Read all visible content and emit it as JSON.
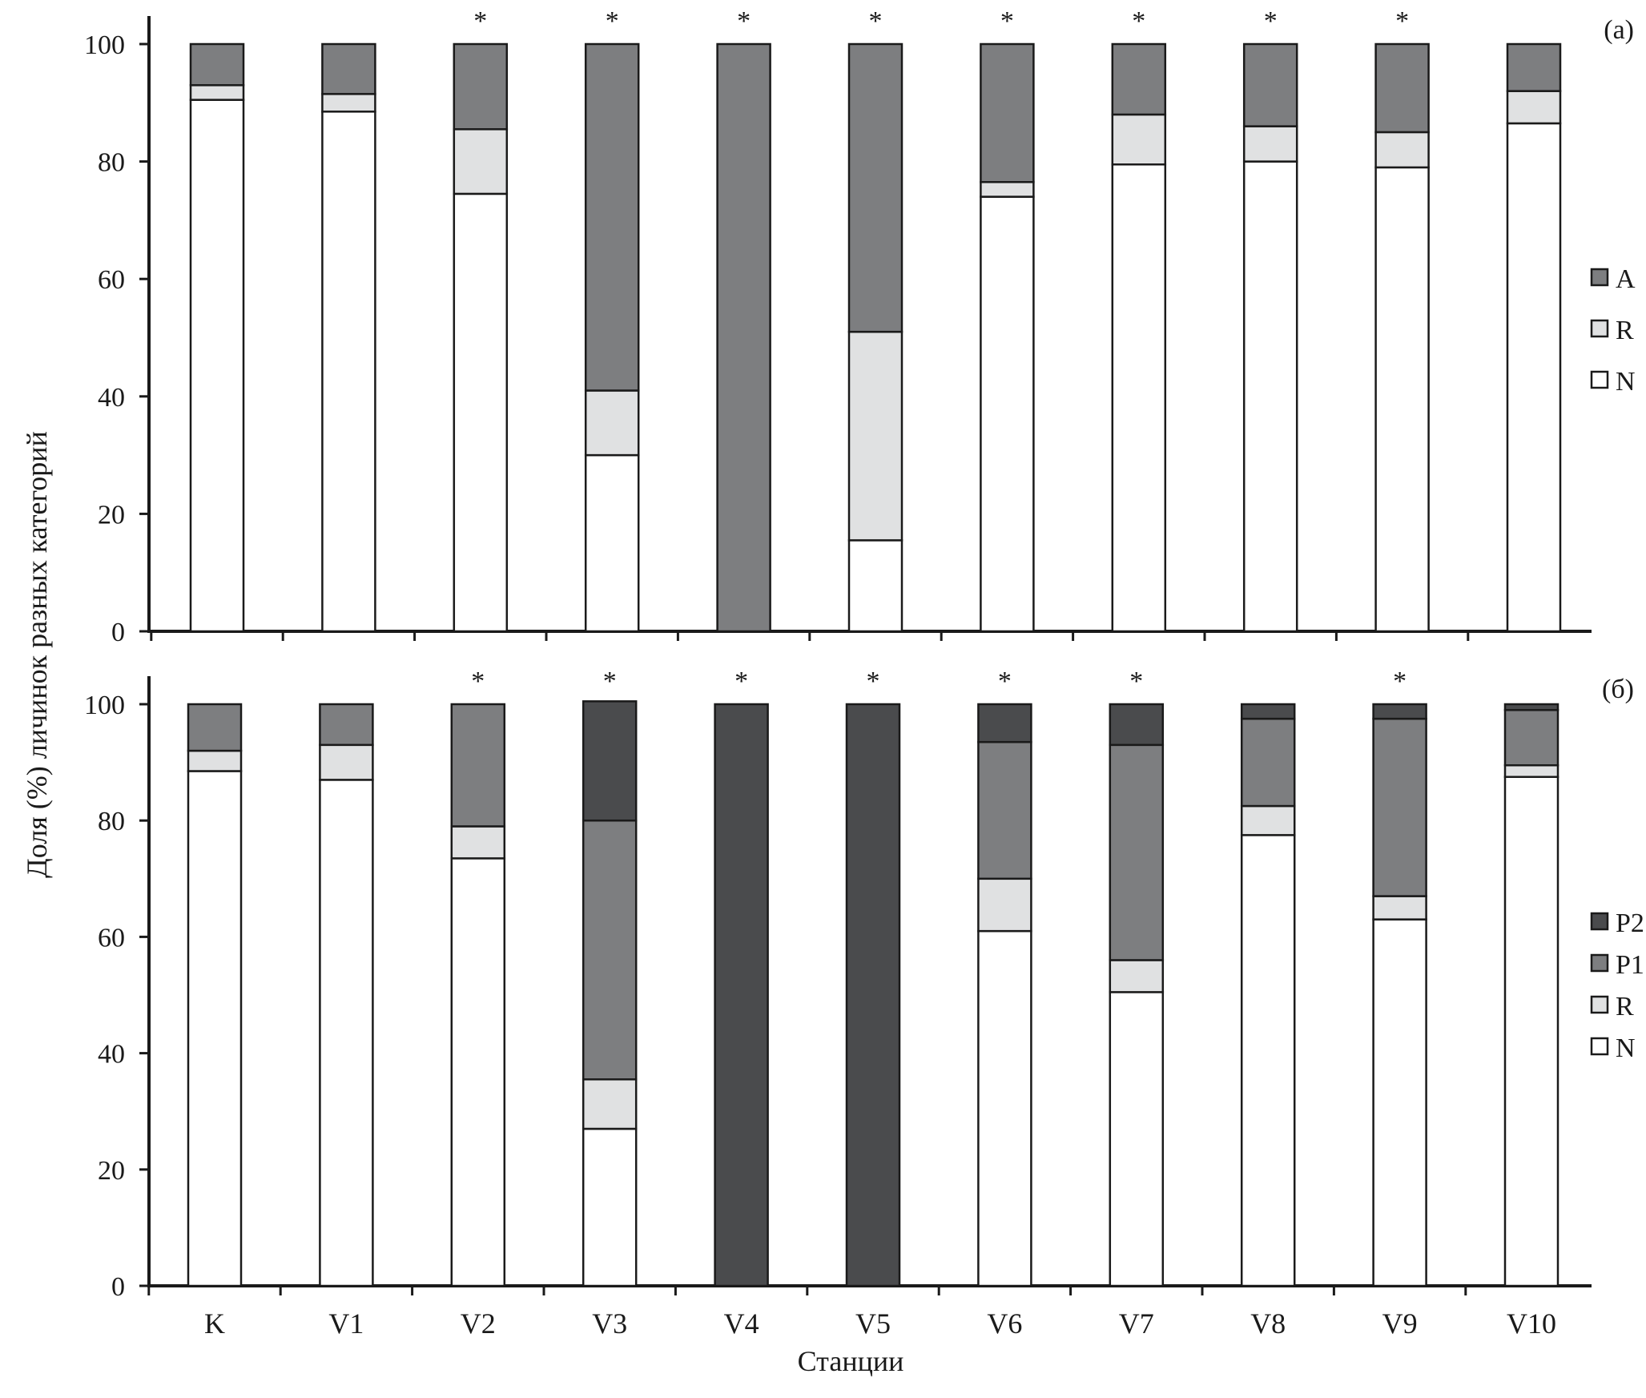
{
  "chart_data": [
    {
      "type": "bar",
      "stacked": true,
      "panel_label": "(а)",
      "title": "",
      "xlabel": "",
      "ylabel": "Доля (%) личинок разных категорий",
      "ylim": [
        0,
        100
      ],
      "yticks": [
        "0",
        "20",
        "40",
        "60",
        "80",
        "100"
      ],
      "categories": [
        "K",
        "V1",
        "V2",
        "V3",
        "V4",
        "V5",
        "V6",
        "V7",
        "V8",
        "V9",
        "V10"
      ],
      "significance": [
        "",
        "",
        "*",
        "*",
        "*",
        "*",
        "*",
        "*",
        "*",
        "*",
        ""
      ],
      "legend_position": "right",
      "series": [
        {
          "name": "N",
          "color": "#ffffff",
          "values": [
            90.5,
            88.5,
            74.5,
            30,
            0,
            15.5,
            74,
            79.5,
            80,
            79,
            86.5
          ]
        },
        {
          "name": "R",
          "color": "#e0e1e2",
          "values": [
            2.5,
            3,
            11,
            11,
            0,
            35.5,
            2.5,
            8.5,
            6,
            6,
            5.5
          ]
        },
        {
          "name": "A",
          "color": "#7d7e80",
          "values": [
            7,
            8.5,
            14.5,
            59,
            100,
            49,
            23.5,
            12,
            14,
            15,
            8
          ]
        }
      ]
    },
    {
      "type": "bar",
      "stacked": true,
      "panel_label": "(б)",
      "title": "",
      "xlabel": "Станции",
      "ylabel": "Доля (%) личинок разных категорий",
      "ylim": [
        0,
        100
      ],
      "yticks": [
        "0",
        "20",
        "40",
        "60",
        "80",
        "100"
      ],
      "categories": [
        "K",
        "V1",
        "V2",
        "V3",
        "V4",
        "V5",
        "V6",
        "V7",
        "V8",
        "V9",
        "V10"
      ],
      "significance": [
        "",
        "",
        "*",
        "*",
        "*",
        "*",
        "*",
        "*",
        "",
        "*",
        ""
      ],
      "legend_position": "right",
      "series": [
        {
          "name": "N",
          "color": "#ffffff",
          "values": [
            88.5,
            87,
            73.5,
            27,
            0,
            0,
            61,
            50.5,
            77.5,
            63,
            87.5
          ]
        },
        {
          "name": "R",
          "color": "#e0e1e2",
          "values": [
            3.5,
            6,
            5.5,
            8.5,
            0,
            0,
            9,
            5.5,
            5,
            4,
            2
          ]
        },
        {
          "name": "P1",
          "color": "#7d7e80",
          "values": [
            8,
            7,
            21,
            44.5,
            0,
            0,
            23.5,
            37,
            15,
            30.5,
            9.5
          ]
        },
        {
          "name": "P2",
          "color": "#4a4b4d",
          "values": [
            0,
            0,
            0,
            20.5,
            100,
            100,
            6.5,
            7,
            2.5,
            2.5,
            1
          ]
        }
      ]
    }
  ]
}
